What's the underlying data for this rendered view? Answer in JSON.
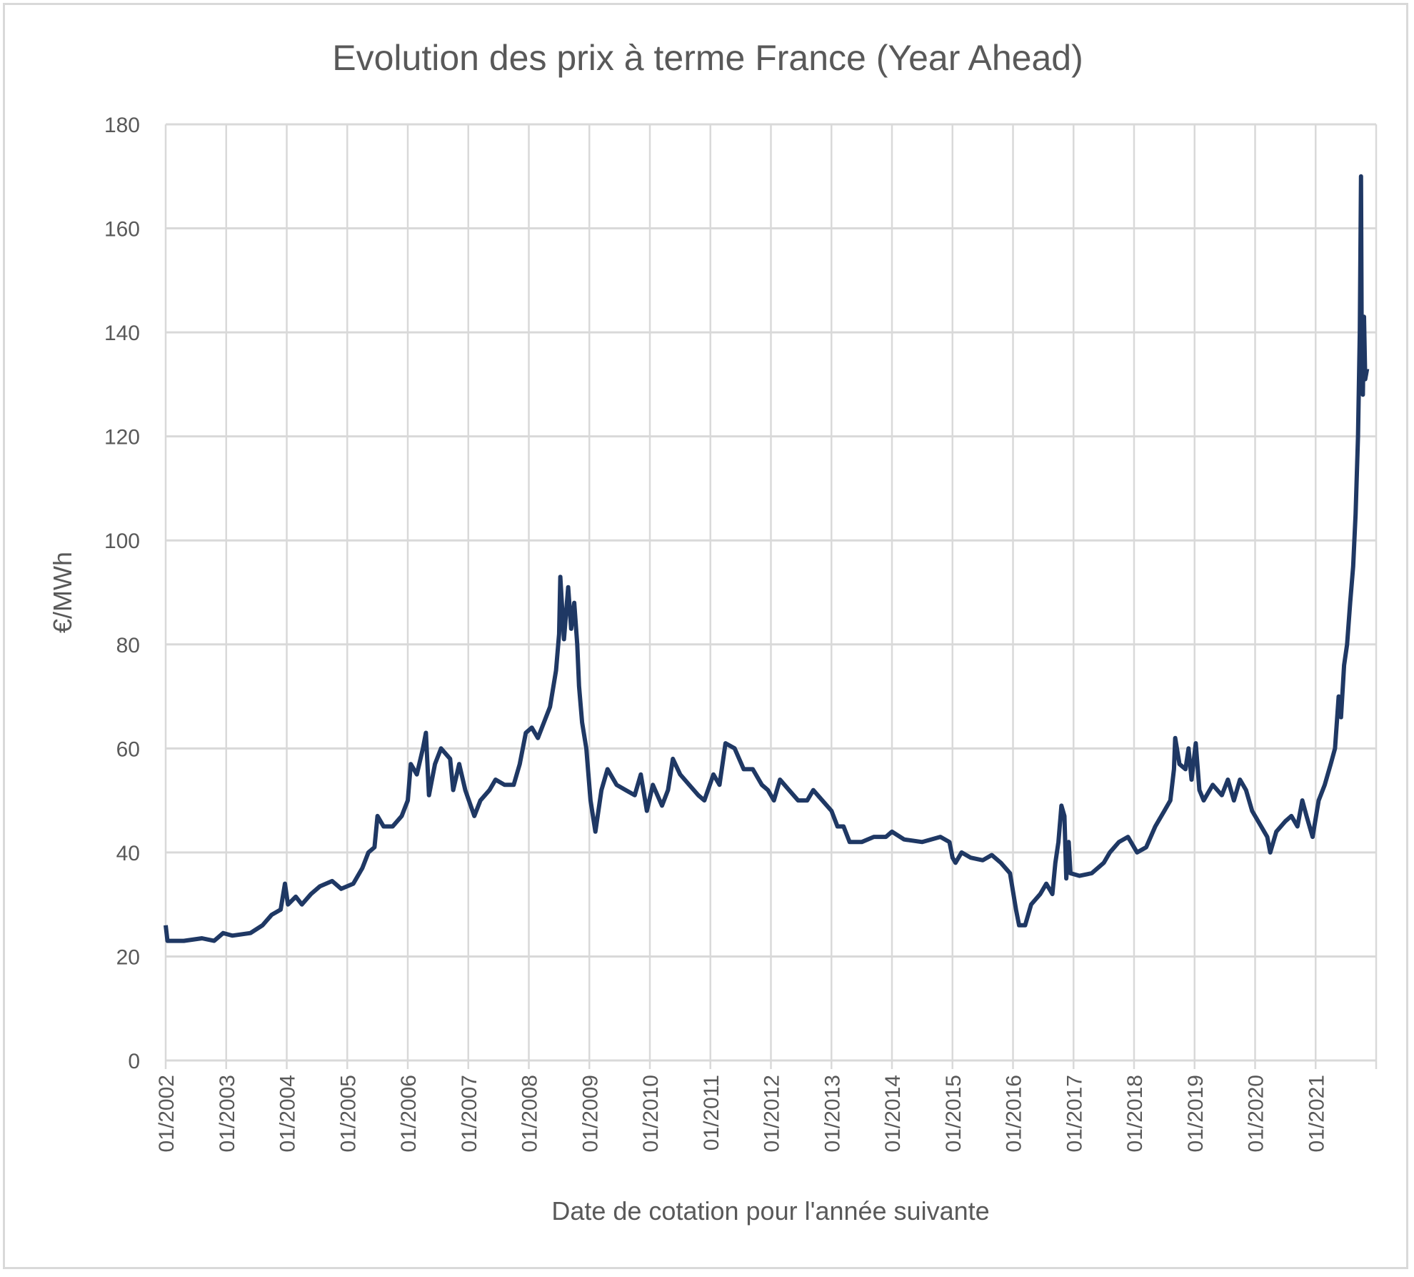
{
  "chart_data": {
    "type": "line",
    "title": "Evolution des prix à terme France (Year Ahead)",
    "xlabel": "Date de cotation pour l'année suivante",
    "ylabel": "€/MWh",
    "xlim": [
      2002,
      2022
    ],
    "ylim": [
      0,
      180
    ],
    "y_ticks": [
      0,
      20,
      40,
      60,
      80,
      100,
      120,
      140,
      160,
      180
    ],
    "x_ticks": [
      {
        "value": 2002,
        "label": "01/2002"
      },
      {
        "value": 2003,
        "label": "01/2003"
      },
      {
        "value": 2004,
        "label": "01/2004"
      },
      {
        "value": 2005,
        "label": "01/2005"
      },
      {
        "value": 2006,
        "label": "01/2006"
      },
      {
        "value": 2007,
        "label": "01/2007"
      },
      {
        "value": 2008,
        "label": "01/2008"
      },
      {
        "value": 2009,
        "label": "01/2009"
      },
      {
        "value": 2010,
        "label": "01/2010"
      },
      {
        "value": 2011,
        "label": "01/2011"
      },
      {
        "value": 2012,
        "label": "01/2012"
      },
      {
        "value": 2013,
        "label": "01/2013"
      },
      {
        "value": 2014,
        "label": "01/2014"
      },
      {
        "value": 2015,
        "label": "01/2015"
      },
      {
        "value": 2016,
        "label": "01/2016"
      },
      {
        "value": 2017,
        "label": "01/2017"
      },
      {
        "value": 2018,
        "label": "01/2018"
      },
      {
        "value": 2019,
        "label": "01/2019"
      },
      {
        "value": 2020,
        "label": "01/2020"
      },
      {
        "value": 2021,
        "label": "01/2021"
      }
    ],
    "grid": true,
    "series": [
      {
        "name": "Year Ahead France",
        "color": "#1f3864",
        "points": [
          [
            2002.0,
            26
          ],
          [
            2002.03,
            23
          ],
          [
            2002.3,
            23
          ],
          [
            2002.6,
            23.5
          ],
          [
            2002.8,
            23
          ],
          [
            2002.95,
            24.5
          ],
          [
            2003.1,
            24
          ],
          [
            2003.4,
            24.5
          ],
          [
            2003.6,
            26
          ],
          [
            2003.75,
            28
          ],
          [
            2003.9,
            29
          ],
          [
            2003.97,
            34
          ],
          [
            2004.02,
            30
          ],
          [
            2004.15,
            31.5
          ],
          [
            2004.25,
            30
          ],
          [
            2004.4,
            32
          ],
          [
            2004.55,
            33.5
          ],
          [
            2004.75,
            34.5
          ],
          [
            2004.9,
            33
          ],
          [
            2005.1,
            34
          ],
          [
            2005.25,
            37
          ],
          [
            2005.35,
            40
          ],
          [
            2005.45,
            41
          ],
          [
            2005.5,
            47
          ],
          [
            2005.6,
            45
          ],
          [
            2005.75,
            45
          ],
          [
            2005.9,
            47
          ],
          [
            2006.0,
            50
          ],
          [
            2006.05,
            57
          ],
          [
            2006.15,
            55
          ],
          [
            2006.25,
            60
          ],
          [
            2006.3,
            63
          ],
          [
            2006.35,
            51
          ],
          [
            2006.45,
            57
          ],
          [
            2006.55,
            60
          ],
          [
            2006.7,
            58
          ],
          [
            2006.75,
            52
          ],
          [
            2006.85,
            57
          ],
          [
            2006.95,
            52
          ],
          [
            2007.1,
            47
          ],
          [
            2007.2,
            50
          ],
          [
            2007.35,
            52
          ],
          [
            2007.45,
            54
          ],
          [
            2007.6,
            53
          ],
          [
            2007.75,
            53
          ],
          [
            2007.85,
            57
          ],
          [
            2007.95,
            63
          ],
          [
            2008.05,
            64
          ],
          [
            2008.15,
            62
          ],
          [
            2008.25,
            65
          ],
          [
            2008.35,
            68
          ],
          [
            2008.45,
            75
          ],
          [
            2008.5,
            82
          ],
          [
            2008.52,
            93
          ],
          [
            2008.58,
            81
          ],
          [
            2008.65,
            91
          ],
          [
            2008.7,
            83
          ],
          [
            2008.75,
            88
          ],
          [
            2008.8,
            80
          ],
          [
            2008.83,
            72
          ],
          [
            2008.88,
            65
          ],
          [
            2008.95,
            60
          ],
          [
            2009.02,
            50
          ],
          [
            2009.1,
            44
          ],
          [
            2009.2,
            52
          ],
          [
            2009.3,
            56
          ],
          [
            2009.45,
            53
          ],
          [
            2009.6,
            52
          ],
          [
            2009.75,
            51
          ],
          [
            2009.85,
            55
          ],
          [
            2009.95,
            48
          ],
          [
            2010.05,
            53
          ],
          [
            2010.2,
            49
          ],
          [
            2010.3,
            52
          ],
          [
            2010.38,
            58
          ],
          [
            2010.5,
            55
          ],
          [
            2010.65,
            53
          ],
          [
            2010.8,
            51
          ],
          [
            2010.9,
            50
          ],
          [
            2011.05,
            55
          ],
          [
            2011.15,
            53
          ],
          [
            2011.25,
            61
          ],
          [
            2011.4,
            60
          ],
          [
            2011.55,
            56
          ],
          [
            2011.7,
            56
          ],
          [
            2011.85,
            53
          ],
          [
            2011.95,
            52
          ],
          [
            2012.05,
            50
          ],
          [
            2012.15,
            54
          ],
          [
            2012.3,
            52
          ],
          [
            2012.45,
            50
          ],
          [
            2012.6,
            50
          ],
          [
            2012.7,
            52
          ],
          [
            2012.85,
            50
          ],
          [
            2013.0,
            48
          ],
          [
            2013.1,
            45
          ],
          [
            2013.2,
            45
          ],
          [
            2013.3,
            42
          ],
          [
            2013.5,
            42
          ],
          [
            2013.7,
            43
          ],
          [
            2013.9,
            43
          ],
          [
            2014.0,
            44
          ],
          [
            2014.2,
            42.5
          ],
          [
            2014.5,
            42
          ],
          [
            2014.8,
            43
          ],
          [
            2014.95,
            42
          ],
          [
            2015.0,
            39
          ],
          [
            2015.05,
            38
          ],
          [
            2015.15,
            40
          ],
          [
            2015.3,
            39
          ],
          [
            2015.5,
            38.5
          ],
          [
            2015.65,
            39.5
          ],
          [
            2015.8,
            38
          ],
          [
            2015.95,
            36
          ],
          [
            2016.05,
            29
          ],
          [
            2016.1,
            26
          ],
          [
            2016.2,
            26
          ],
          [
            2016.3,
            30
          ],
          [
            2016.45,
            32
          ],
          [
            2016.55,
            34
          ],
          [
            2016.65,
            32
          ],
          [
            2016.7,
            38
          ],
          [
            2016.75,
            42
          ],
          [
            2016.8,
            49
          ],
          [
            2016.85,
            47
          ],
          [
            2016.88,
            35
          ],
          [
            2016.92,
            42
          ],
          [
            2016.95,
            36
          ],
          [
            2017.1,
            35.5
          ],
          [
            2017.3,
            36
          ],
          [
            2017.5,
            38
          ],
          [
            2017.6,
            40
          ],
          [
            2017.75,
            42
          ],
          [
            2017.9,
            43
          ],
          [
            2018.05,
            40
          ],
          [
            2018.2,
            41
          ],
          [
            2018.35,
            45
          ],
          [
            2018.5,
            48
          ],
          [
            2018.6,
            50
          ],
          [
            2018.66,
            56
          ],
          [
            2018.68,
            62
          ],
          [
            2018.75,
            57
          ],
          [
            2018.85,
            56
          ],
          [
            2018.9,
            60
          ],
          [
            2018.95,
            54
          ],
          [
            2019.02,
            61
          ],
          [
            2019.08,
            52
          ],
          [
            2019.15,
            50
          ],
          [
            2019.3,
            53
          ],
          [
            2019.45,
            51
          ],
          [
            2019.55,
            54
          ],
          [
            2019.65,
            50
          ],
          [
            2019.75,
            54
          ],
          [
            2019.85,
            52
          ],
          [
            2019.95,
            48
          ],
          [
            2020.1,
            45
          ],
          [
            2020.2,
            43
          ],
          [
            2020.25,
            40
          ],
          [
            2020.35,
            44
          ],
          [
            2020.5,
            46
          ],
          [
            2020.6,
            47
          ],
          [
            2020.7,
            45
          ],
          [
            2020.78,
            50
          ],
          [
            2020.85,
            47
          ],
          [
            2020.95,
            43
          ],
          [
            2021.05,
            50
          ],
          [
            2021.15,
            53
          ],
          [
            2021.25,
            57
          ],
          [
            2021.32,
            60
          ],
          [
            2021.38,
            70
          ],
          [
            2021.42,
            66
          ],
          [
            2021.47,
            76
          ],
          [
            2021.52,
            80
          ],
          [
            2021.57,
            88
          ],
          [
            2021.62,
            95
          ],
          [
            2021.66,
            105
          ],
          [
            2021.7,
            120
          ],
          [
            2021.73,
            140
          ],
          [
            2021.75,
            170
          ],
          [
            2021.76,
            140
          ],
          [
            2021.78,
            128
          ],
          [
            2021.8,
            143
          ],
          [
            2021.82,
            131
          ],
          [
            2021.85,
            133
          ]
        ]
      }
    ]
  }
}
